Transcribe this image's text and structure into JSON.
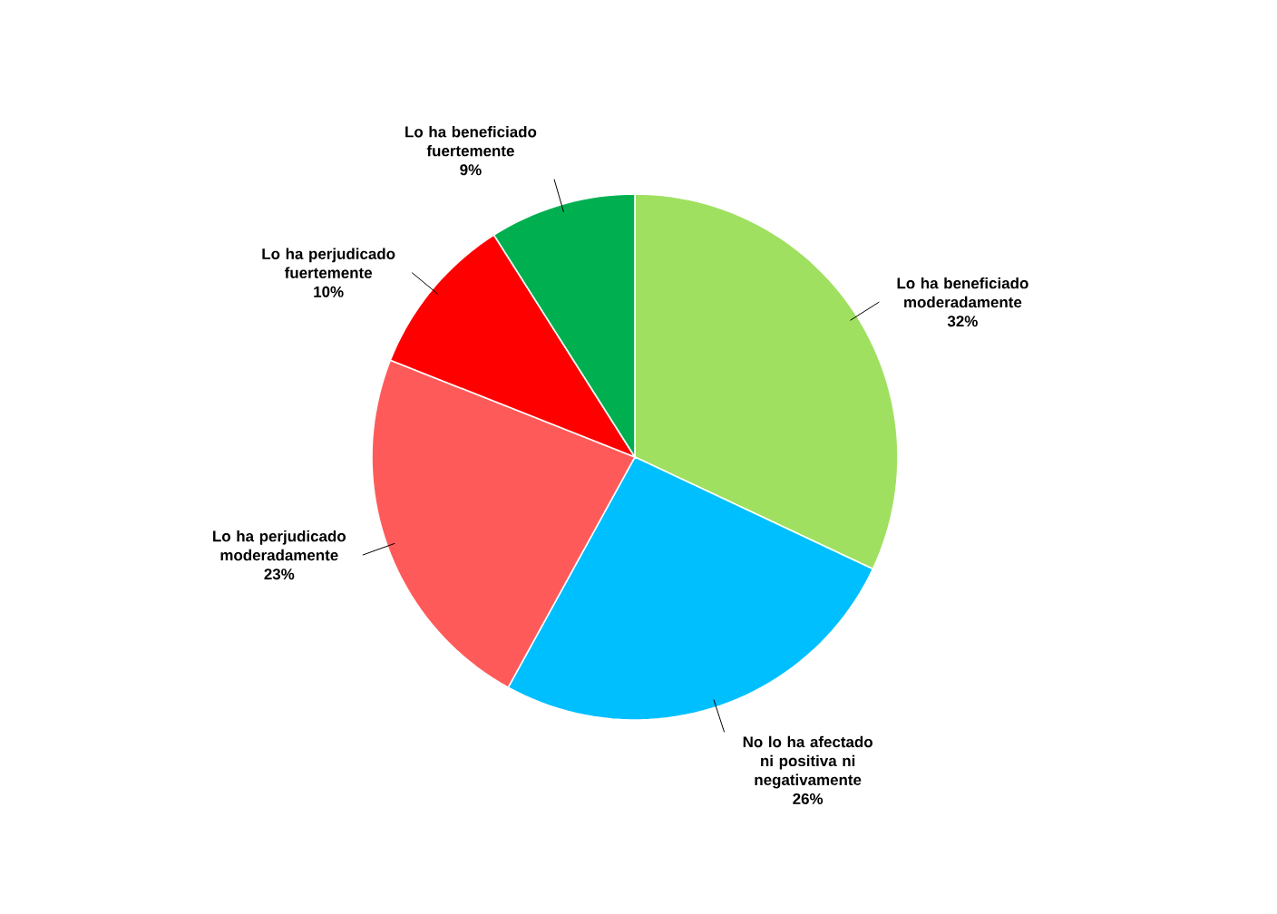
{
  "chart_data": {
    "type": "pie",
    "categories": [
      "Lo ha beneficiado moderadamente",
      "No lo ha afectado ni positiva  ni negativamente",
      "Lo ha perjudicado moderadamente",
      "Lo ha perjudicado fuertemente",
      "Lo ha beneficiado fuertemente"
    ],
    "values": [
      32,
      26,
      23,
      10,
      9
    ],
    "value_labels": [
      "32%",
      "26%",
      "23%",
      "10%",
      "9%"
    ],
    "colors": [
      "#a0e060",
      "#00bfff",
      "#ff5a5a",
      "#ff0000",
      "#00b050"
    ],
    "legend": false
  }
}
